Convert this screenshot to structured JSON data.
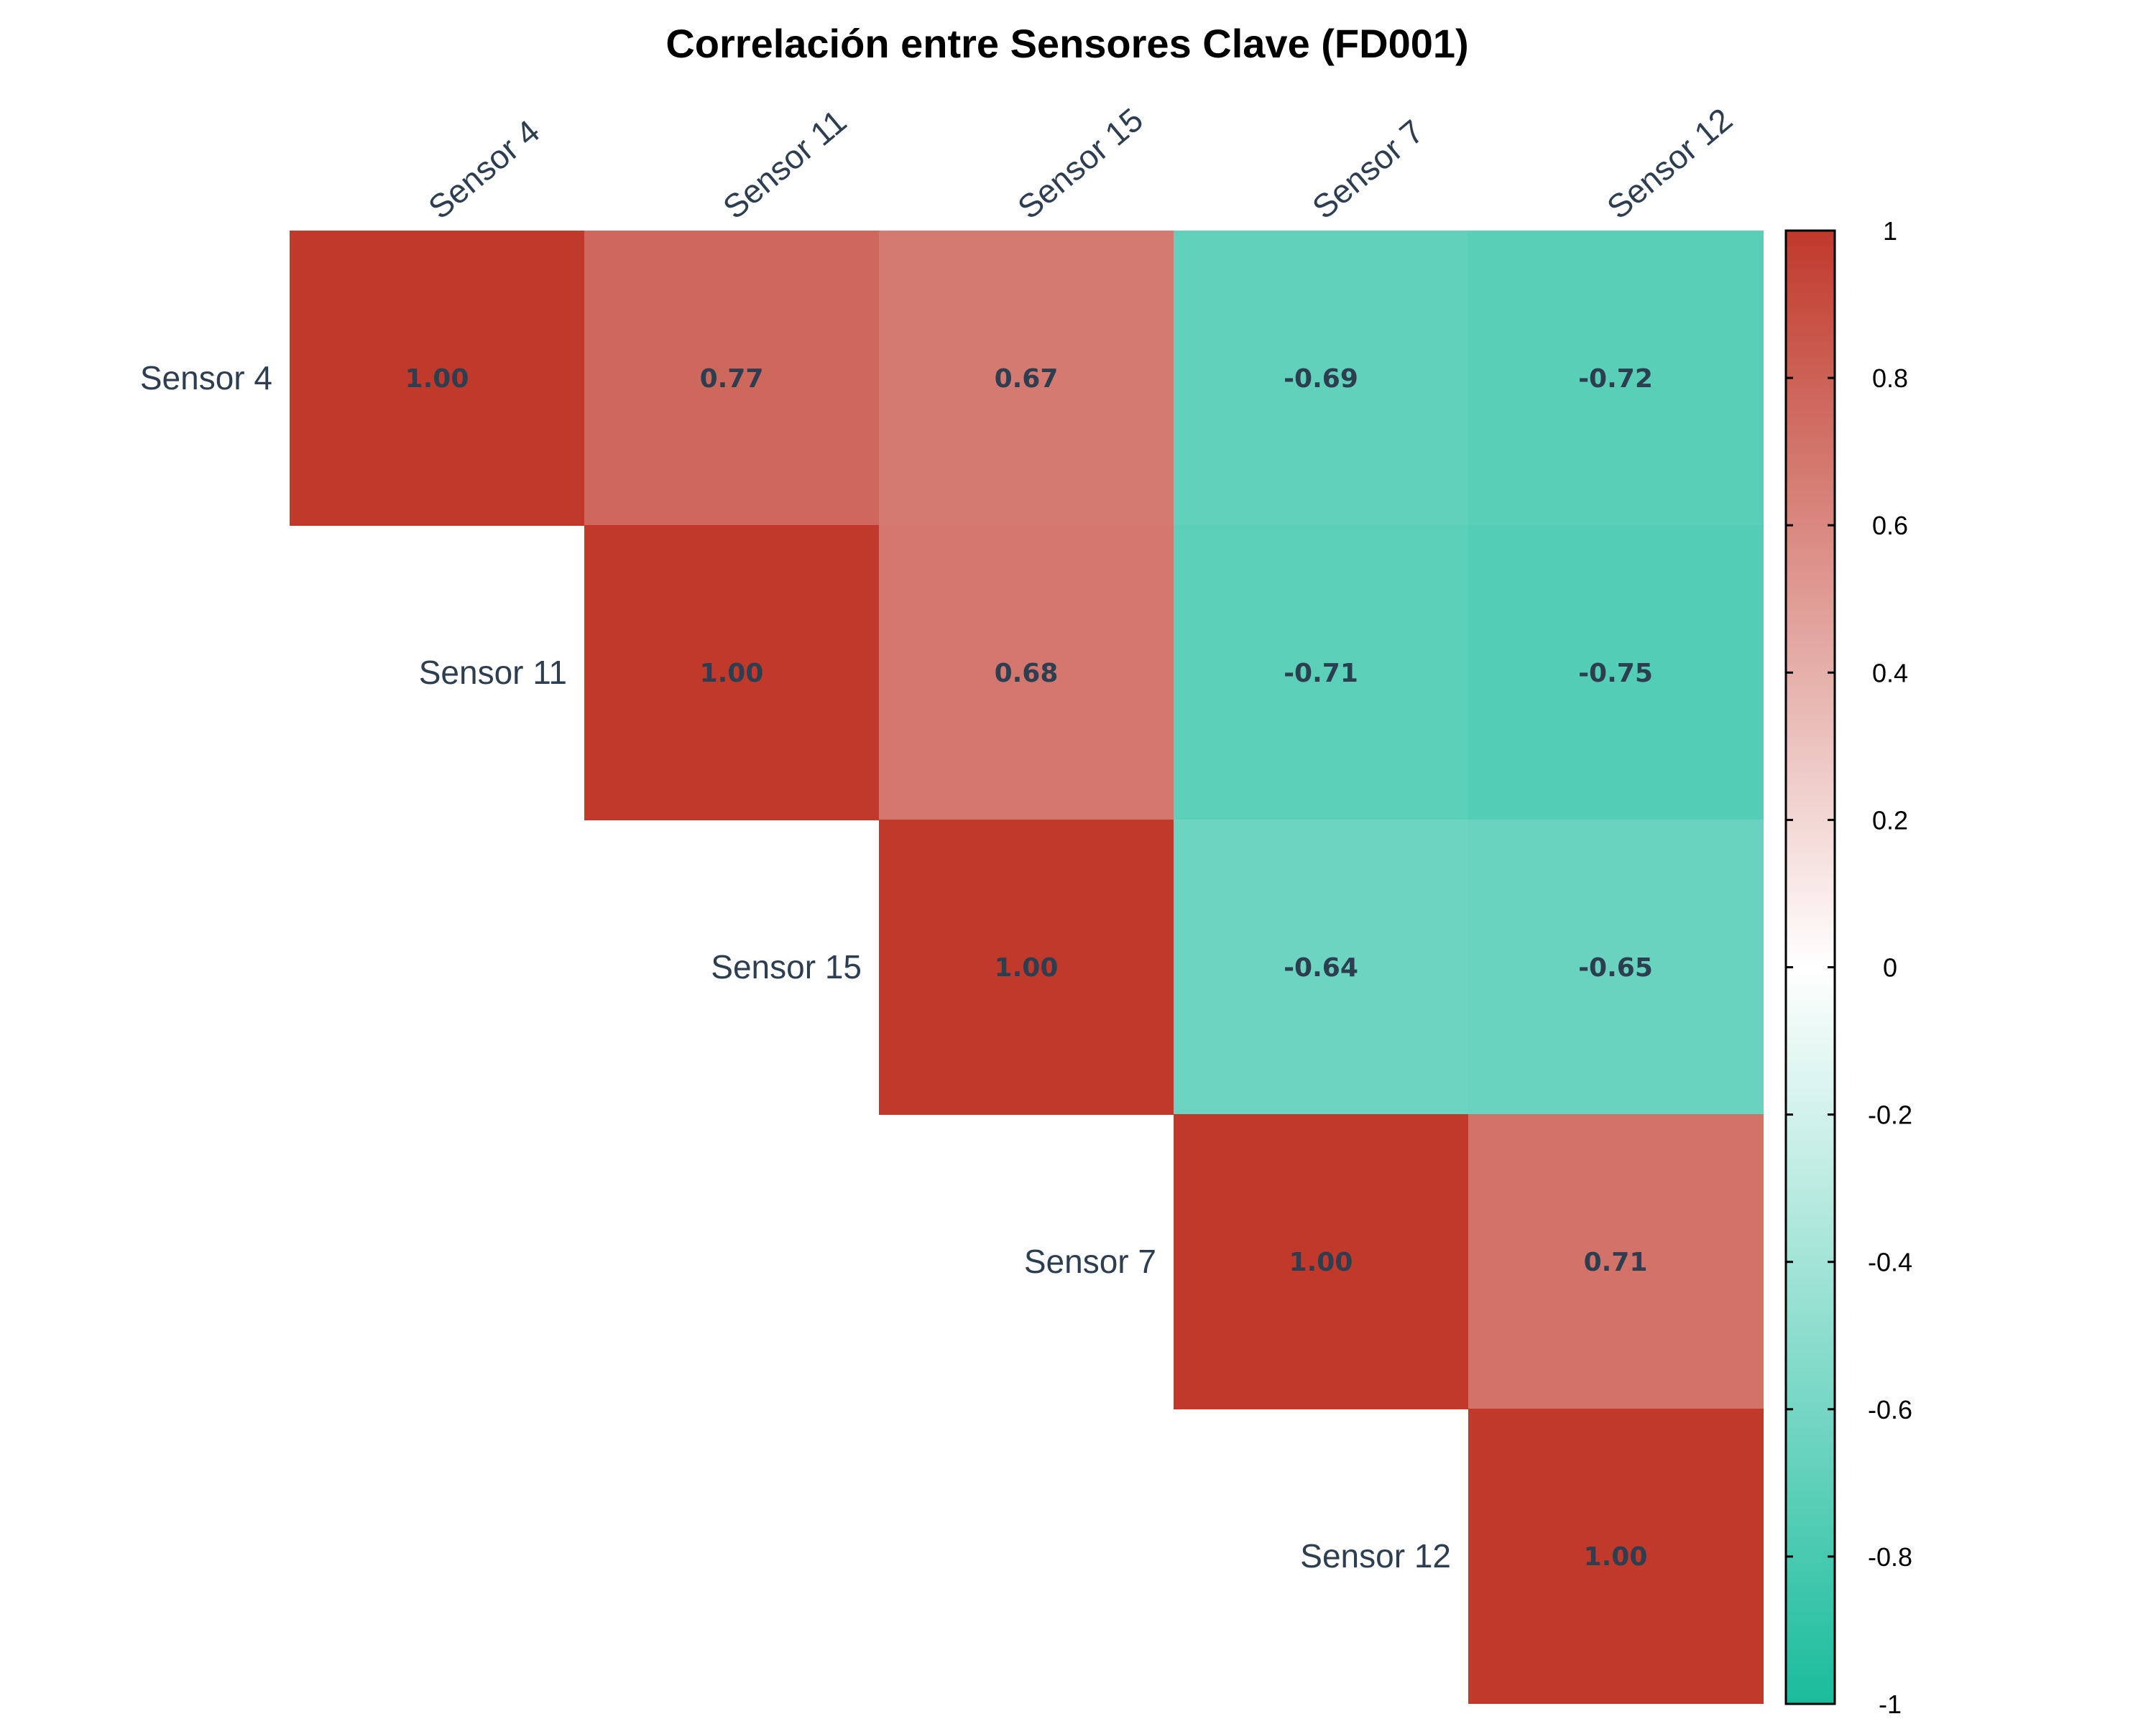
{
  "chart_data": {
    "type": "heatmap",
    "title": "Correlación entre Sensores Clave (FD001)",
    "variables": [
      "Sensor 4",
      "Sensor 11",
      "Sensor 15",
      "Sensor 7",
      "Sensor 12"
    ],
    "matrix": [
      [
        1.0,
        0.77,
        0.67,
        -0.69,
        -0.72
      ],
      [
        0.77,
        1.0,
        0.68,
        -0.71,
        -0.75
      ],
      [
        0.67,
        0.68,
        1.0,
        -0.64,
        -0.65
      ],
      [
        -0.69,
        -0.71,
        -0.64,
        1.0,
        0.71
      ],
      [
        -0.72,
        -0.75,
        -0.65,
        0.71,
        1.0
      ]
    ],
    "display": "upper-triangle",
    "value_labels": [
      [
        "1.00",
        "0.77",
        "0.67",
        "-0.69",
        "-0.72"
      ],
      [
        null,
        "1.00",
        "0.68",
        "-0.71",
        "-0.75"
      ],
      [
        null,
        null,
        "1.00",
        "-0.64",
        "-0.65"
      ],
      [
        null,
        null,
        null,
        "1.00",
        "0.71"
      ],
      [
        null,
        null,
        null,
        null,
        "1.00"
      ]
    ],
    "colorbar": {
      "range": [
        -1,
        1
      ],
      "ticks": [
        "1",
        "0.8",
        "0.6",
        "0.4",
        "0.2",
        "0",
        "-0.2",
        "-0.4",
        "-0.6",
        "-0.8",
        "-1"
      ],
      "tick_values": [
        1,
        0.8,
        0.6,
        0.4,
        0.2,
        0,
        -0.2,
        -0.4,
        -0.6,
        -0.8,
        -1
      ],
      "low_color": "#1abc9c",
      "mid_color": "#ffffff",
      "high_color": "#c0392b"
    }
  }
}
